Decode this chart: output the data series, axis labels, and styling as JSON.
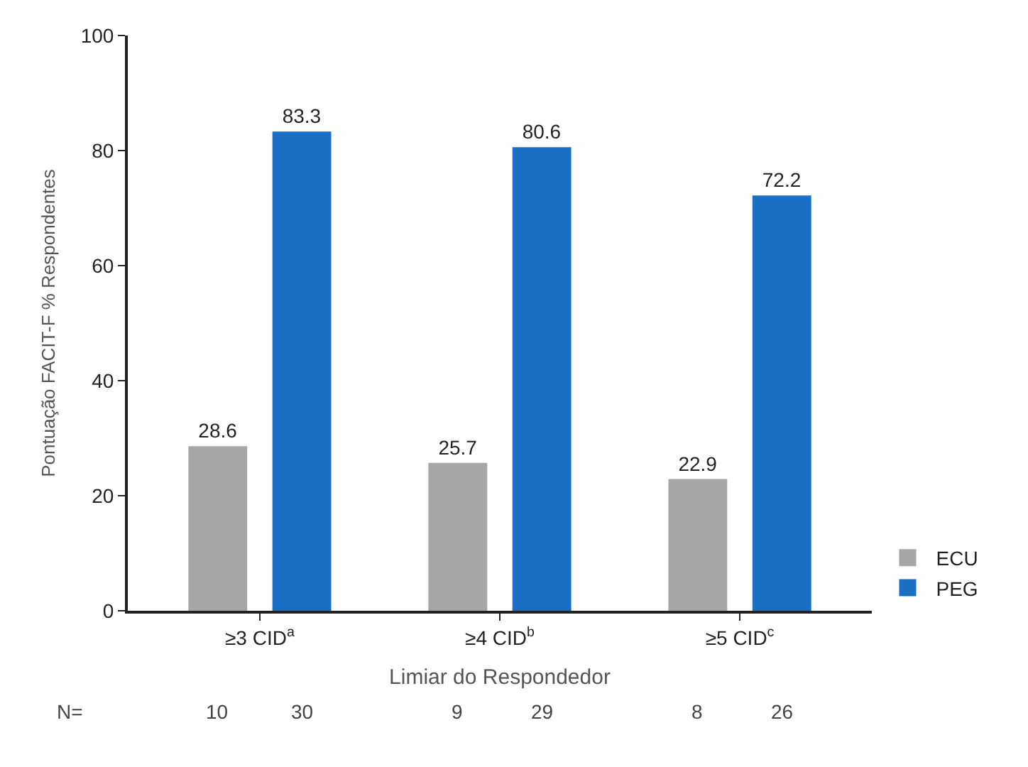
{
  "chart_data": {
    "type": "bar",
    "ylabel": "Pontuação FACIT-F % Respondentes",
    "xlabel": "Limiar do Respondedor",
    "categories": [
      "≥3 CID$^{a}$",
      "≥4 CID$^{b}$",
      "≥5 CID$^{c}$"
    ],
    "series": [
      {
        "name": "ECU",
        "color": "#a6a6a6",
        "values": [
          28.6,
          25.7,
          22.9
        ]
      },
      {
        "name": "PEG",
        "color": "#1a6fc4",
        "values": [
          83.3,
          80.6,
          72.2
        ]
      }
    ],
    "ylim": [
      0,
      100
    ],
    "yticks": [
      0,
      20,
      40,
      60,
      80,
      100
    ],
    "data_labels": true,
    "legend": "bottom right",
    "annotations": [
      "N=",
      "10",
      "30",
      "9",
      "29",
      "8",
      "26"
    ]
  }
}
